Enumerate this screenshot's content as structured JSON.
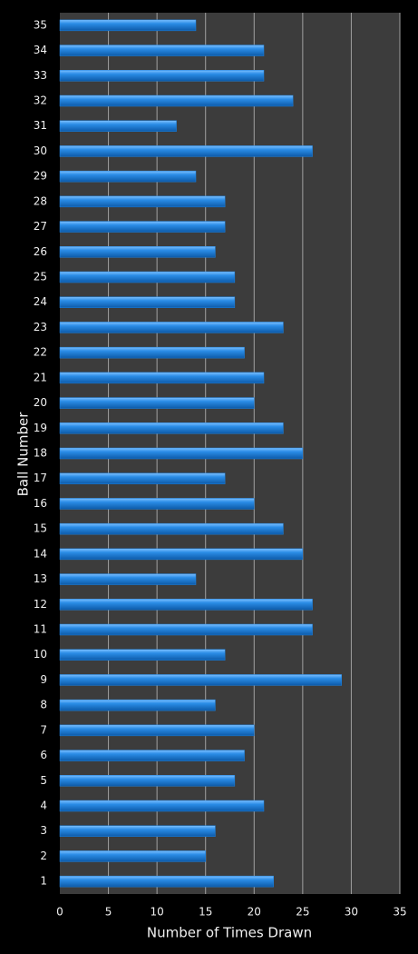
{
  "chart_data": {
    "type": "bar",
    "orientation": "horizontal",
    "x_label": "Number of Times Drawn",
    "y_label": "Ball Number",
    "categories": [
      "1",
      "2",
      "3",
      "4",
      "5",
      "6",
      "7",
      "8",
      "9",
      "10",
      "11",
      "12",
      "13",
      "14",
      "15",
      "16",
      "17",
      "18",
      "19",
      "20",
      "21",
      "22",
      "23",
      "24",
      "25",
      "26",
      "27",
      "28",
      "29",
      "30",
      "31",
      "32",
      "33",
      "34",
      "35"
    ],
    "values": [
      22,
      15,
      16,
      21,
      18,
      19,
      20,
      16,
      29,
      17,
      26,
      26,
      14,
      25,
      23,
      20,
      17,
      25,
      23,
      20,
      21,
      19,
      23,
      18,
      18,
      16,
      17,
      17,
      14,
      26,
      12,
      24,
      21,
      21,
      14
    ],
    "color": "#1e80dc",
    "xlim": [
      0,
      35
    ],
    "xticks": [
      0,
      5,
      10,
      15,
      20,
      25,
      30,
      35
    ],
    "grid": true
  }
}
